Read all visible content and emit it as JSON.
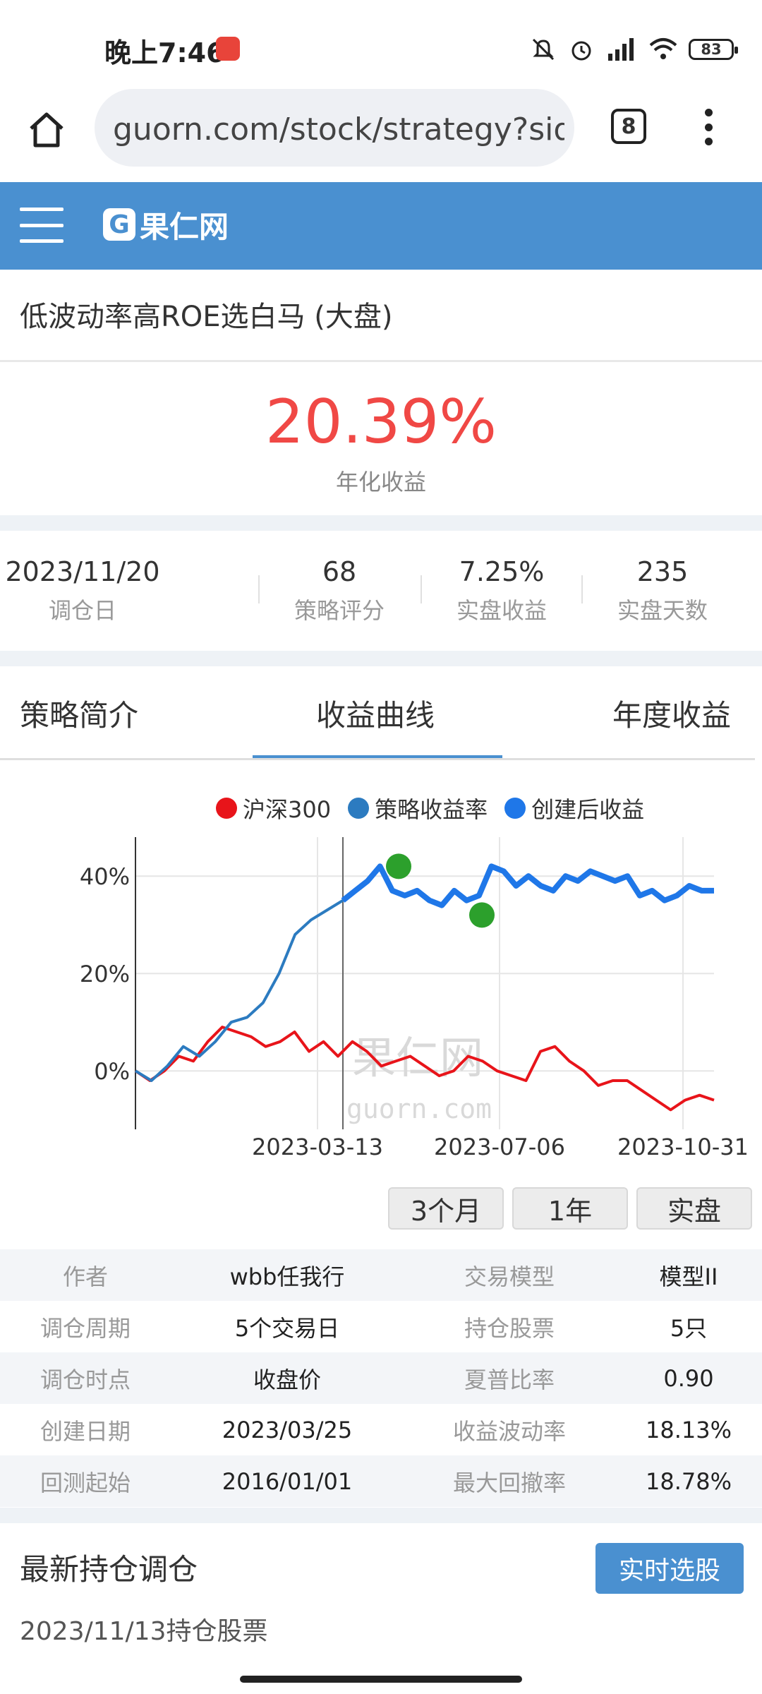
{
  "status_bar": {
    "time": "晚上7:46",
    "battery": "83"
  },
  "browser": {
    "url": "guorn.com/stock/strategy?sid=",
    "tab_count": "8"
  },
  "site": {
    "logo_text": "果仁网"
  },
  "strategy": {
    "title": "低波动率高ROE选白马 (大盘)",
    "annual_return": "20.39%",
    "annual_return_label": "年化收益"
  },
  "stats": [
    {
      "value": "2023/11/20",
      "label": "调仓日"
    },
    {
      "value": "68",
      "label": "策略评分"
    },
    {
      "value": "7.25%",
      "label": "实盘收益"
    },
    {
      "value": "235",
      "label": "实盘天数"
    }
  ],
  "tabs": [
    "策略简介",
    "收益曲线",
    "年度收益"
  ],
  "chart_data": {
    "type": "line",
    "series": [
      {
        "name": "沪深300",
        "color": "#e8141a",
        "values": [
          0,
          -2,
          0,
          3,
          2,
          6,
          9,
          8,
          7,
          5,
          6,
          8,
          4,
          6,
          3,
          6,
          4,
          1,
          2,
          3,
          1,
          -1,
          0,
          3,
          2,
          0,
          -1,
          -2,
          4,
          5,
          2,
          0,
          -3,
          -2,
          -2,
          -4,
          -6,
          -8,
          -6,
          -5,
          -6
        ]
      },
      {
        "name": "策略收益率",
        "color": "#2c7bc0",
        "values": [
          0,
          -2,
          1,
          5,
          3,
          6,
          10,
          11,
          14,
          20,
          28,
          31,
          33,
          35
        ]
      },
      {
        "name": "创建后收益",
        "color": "#1f77e8",
        "values": [
          35,
          37,
          39,
          42,
          37,
          36,
          37,
          35,
          34,
          37,
          35,
          36,
          42,
          41,
          38,
          40,
          38,
          37,
          40,
          39,
          41,
          40,
          39,
          40,
          36,
          37,
          35,
          36,
          38,
          37,
          37
        ]
      }
    ],
    "x_tick_labels": [
      "2023-03-13",
      "2023-07-06",
      "2023-10-31"
    ],
    "y_tick_labels": [
      "0%",
      "20%",
      "40%"
    ],
    "ylim": [
      -12,
      48
    ],
    "markers": [
      {
        "type": "peak",
        "value": 42,
        "color": "#2ca02c"
      },
      {
        "type": "trough",
        "value": 32,
        "color": "#2ca02c"
      }
    ],
    "watermark_text": [
      "果仁网",
      "guorn.com"
    ],
    "legend_position": "top"
  },
  "period_buttons": [
    "3个月",
    "1年",
    "实盘"
  ],
  "info_table": [
    [
      "作者",
      "wbb任我行",
      "交易模型",
      "模型II"
    ],
    [
      "调仓周期",
      "5个交易日",
      "持仓股票",
      "5只"
    ],
    [
      "调仓时点",
      "收盘价",
      "夏普比率",
      "0.90"
    ],
    [
      "创建日期",
      "2023/03/25",
      "收益波动率",
      "18.13%"
    ],
    [
      "回测起始",
      "2016/01/01",
      "最大回撤率",
      "18.78%"
    ]
  ],
  "latest": {
    "title": "最新持仓调仓",
    "button": "实时选股",
    "holdings_date": "2023/11/13持仓股票"
  }
}
